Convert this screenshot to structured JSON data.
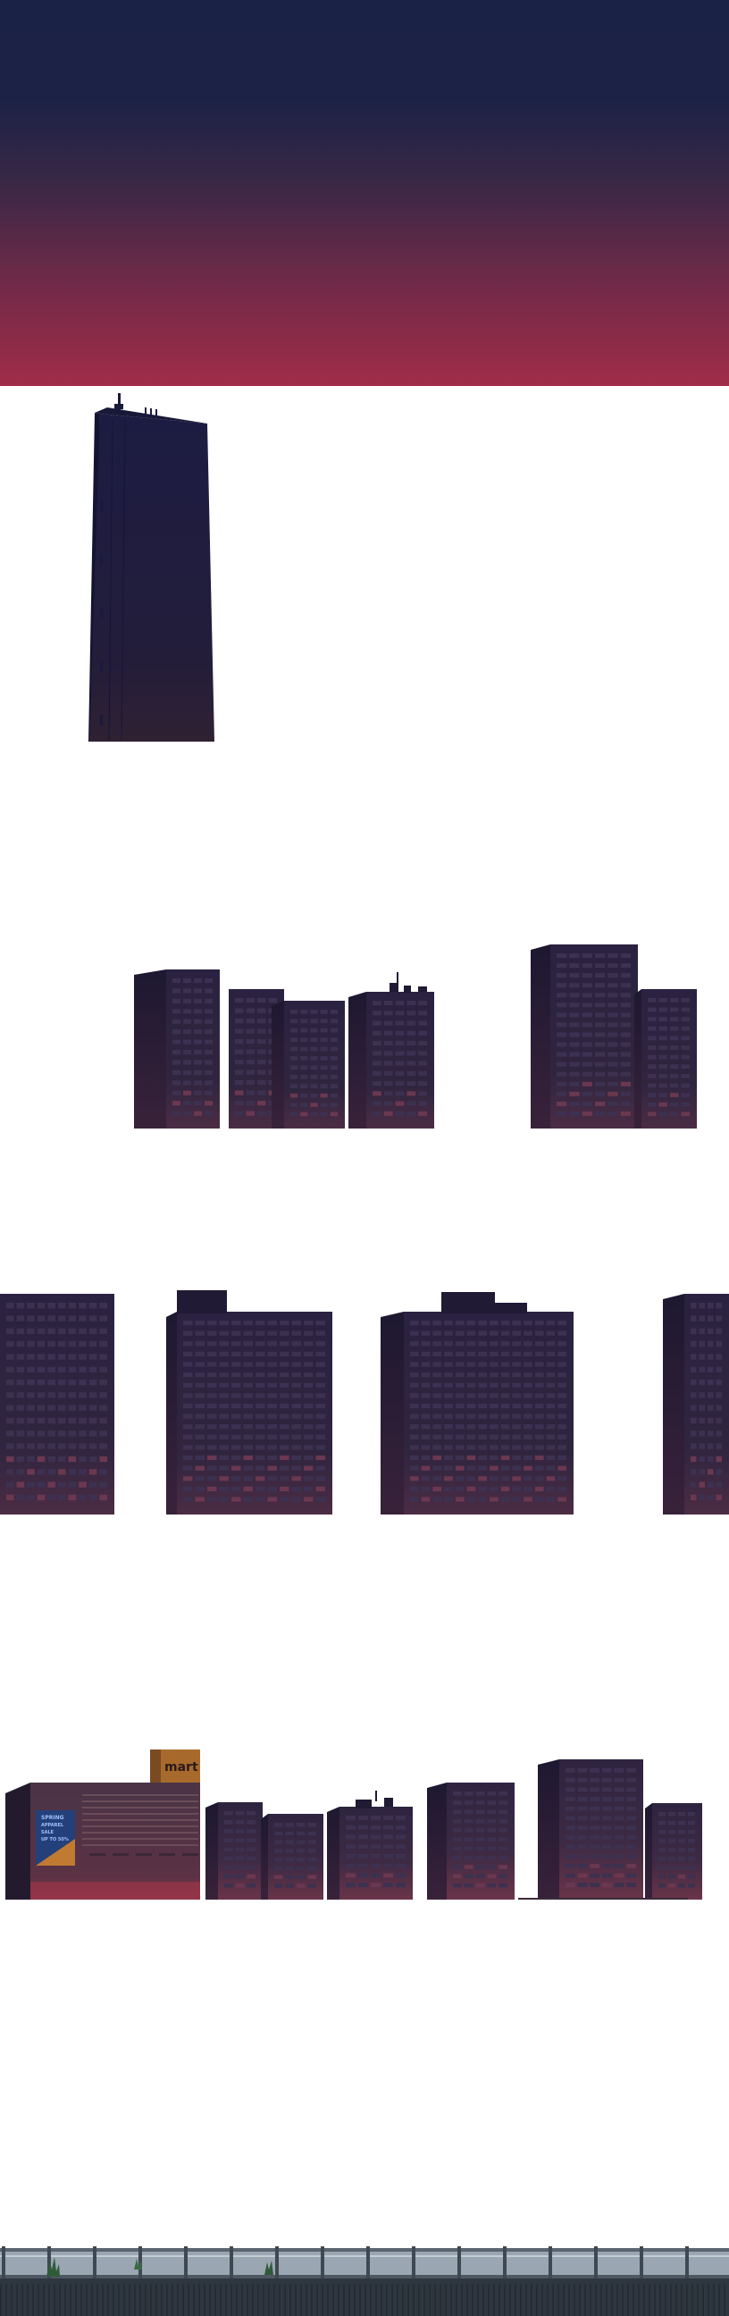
{
  "colors": {
    "sky_top": "#1a2246",
    "sky_bottom": "#a02c48",
    "tower_top": "#1e1c3c",
    "tower_bottom": "#2d2132",
    "building_dark": "#26203a",
    "building_mid": "#352a48",
    "building_bottom": "#5a3248",
    "window": "#413452",
    "window_warm": "#7a3a50",
    "sign_orange": "#c07a32",
    "sign_blue": "#2a4a8a",
    "rail_steel": "#7d8a96",
    "ground": "#2e3640"
  },
  "layers": [
    {
      "name": "sky",
      "type": "gradient"
    },
    {
      "name": "tower",
      "type": "landmark"
    },
    {
      "name": "far-buildings",
      "type": "skyline"
    },
    {
      "name": "mid-buildings",
      "type": "skyline"
    },
    {
      "name": "near-buildings",
      "type": "skyline"
    },
    {
      "name": "railing",
      "type": "foreground"
    }
  ],
  "mall": {
    "logo_text": "mart",
    "poster_lines": [
      "SPRING",
      "APPAREL",
      "SALE",
      "UP TO 50%"
    ]
  }
}
